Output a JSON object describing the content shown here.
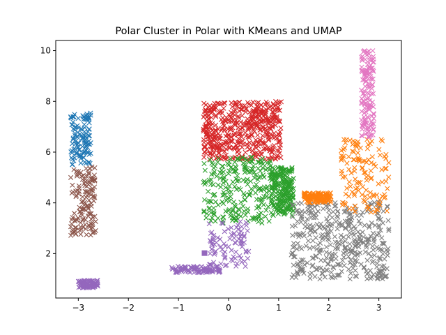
{
  "chart_data": {
    "type": "scatter",
    "title": "Polar Cluster in Polar with KMeans and UMAP",
    "xlabel": "",
    "ylabel": "",
    "xlim": [
      -3.45,
      3.45
    ],
    "ylim": [
      0.25,
      10.4
    ],
    "xticks": [
      -3,
      -2,
      -1,
      0,
      1,
      2,
      3
    ],
    "xtick_labels": [
      "−3",
      "−2",
      "−1",
      "0",
      "1",
      "2",
      "3"
    ],
    "yticks": [
      2,
      4,
      6,
      8,
      10
    ],
    "ytick_labels": [
      "2",
      "4",
      "6",
      "8",
      "10"
    ],
    "grid": false,
    "legend": "none",
    "marker": "x",
    "clusters": [
      {
        "color": "#1f77b4",
        "regions": [
          [
            -3.15,
            -2.75,
            5.5,
            7.55
          ]
        ],
        "count": 120
      },
      {
        "color": "#8c564b",
        "regions": [
          [
            -3.15,
            -2.65,
            2.7,
            5.45
          ]
        ],
        "count": 140
      },
      {
        "color": "#d62728",
        "regions": [
          [
            -0.5,
            1.05,
            5.7,
            8.0
          ]
        ],
        "count": 520
      },
      {
        "color": "#2ca02c",
        "regions": [
          [
            -0.5,
            0.85,
            3.2,
            5.85
          ],
          [
            0.85,
            1.3,
            3.5,
            5.4
          ]
        ],
        "count": 480
      },
      {
        "color": "#9467bd",
        "regions": [
          [
            -0.4,
            0.4,
            1.5,
            3.3
          ],
          [
            -1.15,
            -0.15,
            1.25,
            1.5
          ],
          [
            -3.0,
            -2.6,
            0.65,
            0.95
          ]
        ],
        "count": 260
      },
      {
        "color": "#7f7f7f",
        "regions": [
          [
            1.25,
            3.2,
            1.0,
            4.05
          ]
        ],
        "count": 420
      },
      {
        "color": "#ff7f0e",
        "regions": [
          [
            2.25,
            3.2,
            3.6,
            6.5
          ],
          [
            1.5,
            2.05,
            4.0,
            4.4
          ]
        ],
        "count": 260
      },
      {
        "color": "#e377c2",
        "regions": [
          [
            2.65,
            2.9,
            6.6,
            10.0
          ]
        ],
        "count": 150
      }
    ],
    "annotations": [
      {
        "type": "square-marker",
        "x": -0.48,
        "y": 2.02,
        "color": "#9467bd"
      }
    ]
  }
}
